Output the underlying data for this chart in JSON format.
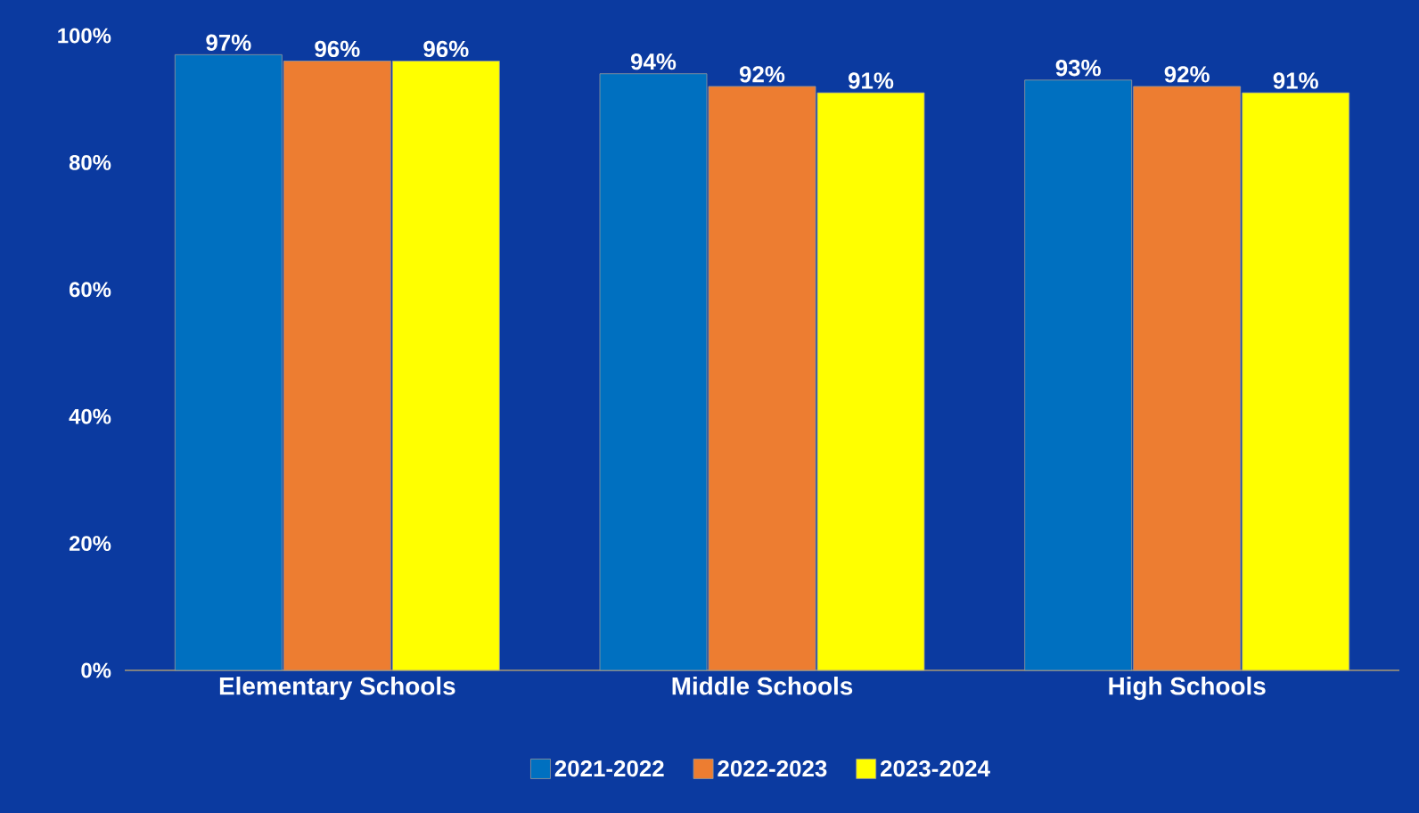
{
  "chart_data": {
    "type": "bar",
    "categories": [
      "Elementary Schools",
      "Middle Schools",
      "High Schools"
    ],
    "series": [
      {
        "name": "2021-2022",
        "color": "#0070c0",
        "values": [
          97,
          94,
          93
        ],
        "value_labels": [
          "97%",
          "94%",
          "93%"
        ]
      },
      {
        "name": "2022-2023",
        "color": "#ed7d31",
        "values": [
          96,
          92,
          92
        ],
        "value_labels": [
          "96%",
          "92%",
          "92%"
        ]
      },
      {
        "name": "2023-2024",
        "color": "#ffff00",
        "values": [
          96,
          91,
          91
        ],
        "value_labels": [
          "96%",
          "91%",
          "91%"
        ]
      }
    ],
    "ylim": [
      0,
      100
    ],
    "yticks": [
      {
        "value": 0,
        "label": "0%"
      },
      {
        "value": 20,
        "label": "20%"
      },
      {
        "value": 40,
        "label": "40%"
      },
      {
        "value": 60,
        "label": "60%"
      },
      {
        "value": 80,
        "label": "80%"
      },
      {
        "value": 100,
        "label": "100%"
      }
    ],
    "grid": false,
    "legend": "bottom"
  }
}
